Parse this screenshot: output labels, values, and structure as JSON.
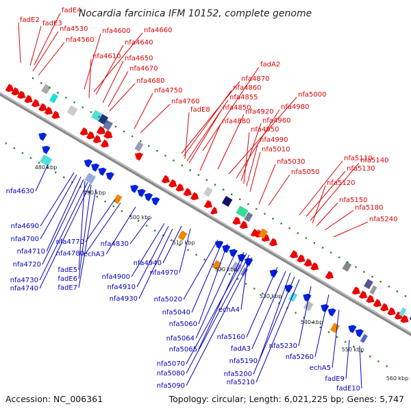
{
  "title": "Nocardia farcinica IFM 10152, complete genome",
  "footer": {
    "accession": "Accession: NC_006361",
    "summary": "Topology: circular; Length: 6,021,225 bp; Genes: 5,747"
  },
  "colors": {
    "upper_label": "#dd0000",
    "lower_label": "#0000bb",
    "backbone": "#888888",
    "tick": "#228822"
  },
  "scale_ticks": [
    "480 kbp",
    "490 kbp",
    "500 kbp",
    "510 kbp",
    "520 kbp",
    "530 kbp",
    "540 kbp",
    "550 kbp",
    "560 kbp"
  ],
  "upper_genes": [
    "fadE4",
    "fadE2",
    "fadE3",
    "nfa4530",
    "nfa4560",
    "nfa4600",
    "nfa4660",
    "nfa4640",
    "nfa4610",
    "nfa4650",
    "nfa4670",
    "nfa4680",
    "nfa4750",
    "nfa4760",
    "fadA2",
    "nfa4870",
    "nfa4860",
    "fadE8",
    "nfa4855",
    "nfa4850",
    "nfa4880",
    "nfa4920",
    "nfa5000",
    "nfa4980",
    "nfa4960",
    "nfa4950",
    "nfa4990",
    "nfa5010",
    "nfa5030",
    "nfa5050",
    "nfa5110",
    "nfa5140",
    "nfa5130",
    "nfa5120",
    "nfa5150",
    "nfa5180",
    "nfa5240"
  ],
  "lower_genes": [
    "nfa4630",
    "nfa4690",
    "nfa4700",
    "nfa4770",
    "nfa4710",
    "nfa4780",
    "nfa4830",
    "nfa4720",
    "echA3",
    "fadE5",
    "nfa4730",
    "fadE6",
    "nfa4740",
    "fadE7",
    "nfa4940",
    "nfa4900",
    "nfa4970",
    "nfa4910",
    "nfa4930",
    "nfa5020",
    "nfa5040",
    "nfa5060",
    "echA4",
    "nfa5064",
    "nfa5160",
    "nfa5065",
    "fadA3",
    "nfa5230",
    "nfa5070",
    "nfa5190",
    "nfa5260",
    "nfa5080",
    "nfa5200",
    "echA5",
    "nfa5090",
    "nfa5210",
    "fadE9",
    "fadE10"
  ]
}
